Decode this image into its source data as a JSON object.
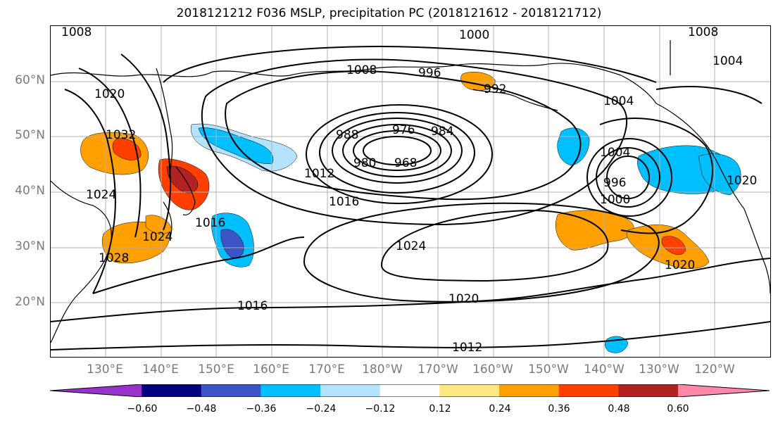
{
  "title": "2018121212 F036 MSLP, precipitation PC (2018121612 - 2018121712)",
  "lat_labels": [
    "60°N",
    "50°N",
    "40°N",
    "30°N",
    "20°N"
  ],
  "lon_labels": [
    "130°E",
    "140°E",
    "150°E",
    "160°E",
    "170°E",
    "180°W",
    "170°W",
    "160°W",
    "150°W",
    "140°W",
    "130°W",
    "120°W"
  ],
  "isobar_labels": [
    "1000",
    "1008",
    "996",
    "992",
    "1004",
    "1008",
    "1004",
    "1008",
    "1020",
    "1032",
    "1024",
    "1028",
    "1024",
    "1016",
    "1012",
    "1016",
    "988",
    "976",
    "984",
    "980",
    "968",
    "1004",
    "996",
    "1000",
    "1020",
    "1024",
    "1020",
    "1016",
    "1020",
    "1012"
  ],
  "colorbar": {
    "bins": [
      "#9932cc",
      "#000080",
      "#3a55c8",
      "#00bfff",
      "#b3e3ff",
      "#ffffff",
      "#ffe680",
      "#ffa000",
      "#ff4000",
      "#b22222",
      "#ff88aa"
    ],
    "tick_labels": [
      "−0.60",
      "−0.48",
      "−0.36",
      "−0.24",
      "−0.12",
      "0.12",
      "0.24",
      "0.36",
      "0.48",
      "0.60"
    ]
  }
}
